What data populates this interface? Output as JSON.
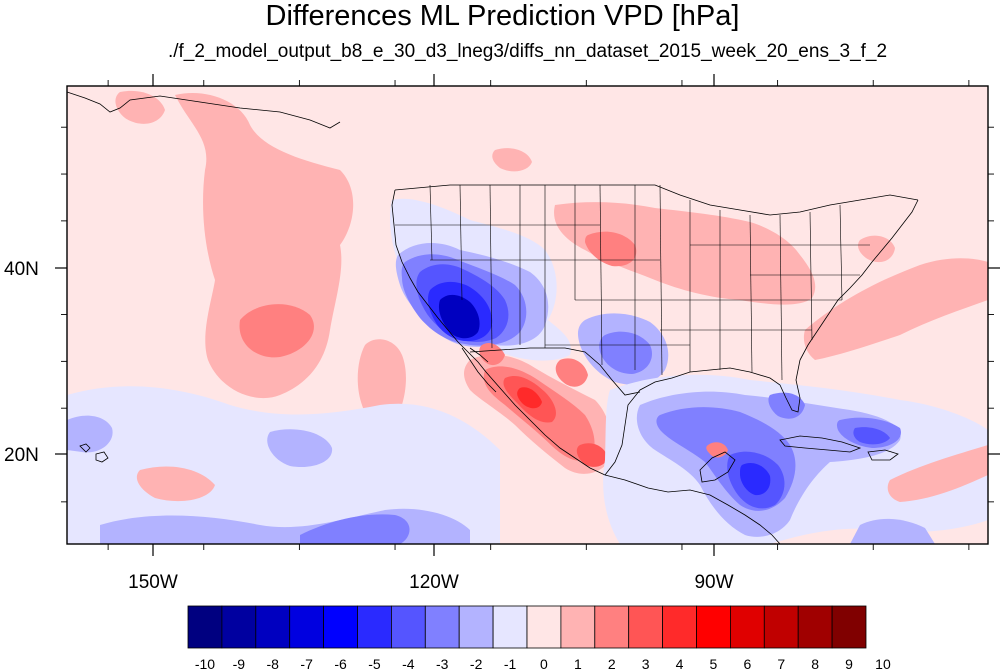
{
  "title": "Differences ML Prediction VPD [hPa]",
  "subtitle": "./f_2_model_output_b8_e_30_d3_lneg3/diffs_nn_dataset_2015_week_20_ens_3_f_2",
  "map": {
    "lon_labels": [
      "150W",
      "120W",
      "90W"
    ],
    "lat_labels": [
      "40N",
      "20N"
    ],
    "lon_range": [
      -159.3,
      -63
    ],
    "lat_range": [
      10.5,
      59.4
    ]
  },
  "colorbar": {
    "labels": [
      "-10",
      "-9",
      "-8",
      "-7",
      "-6",
      "-5",
      "-4",
      "-3",
      "-2",
      "-1",
      "0",
      "1",
      "2",
      "3",
      "4",
      "5",
      "6",
      "7",
      "8",
      "9",
      "10"
    ],
    "colors": [
      "#000080",
      "#0000a0",
      "#0000c0",
      "#0000e0",
      "#0000ff",
      "#2a2aff",
      "#5555ff",
      "#8080ff",
      "#b3b3ff",
      "#e6e6ff",
      "#ffe6e6",
      "#ffb3b3",
      "#ff8080",
      "#ff5555",
      "#ff2a2a",
      "#ff0000",
      "#e00000",
      "#c00000",
      "#a00000",
      "#800000"
    ]
  },
  "palette": {
    "background": "#ffe6e6",
    "light_pink": "#ffb3b3",
    "mid_red": "#ff8080",
    "red": "#ff5555",
    "dark_red": "#ff2a2a",
    "faint_blue": "#e6e6ff",
    "light_blue": "#b3b3ff",
    "mid_blue": "#8080ff",
    "blue": "#5555ff",
    "strong_blue": "#2a2aff",
    "deep_blue": "#0000c0"
  }
}
